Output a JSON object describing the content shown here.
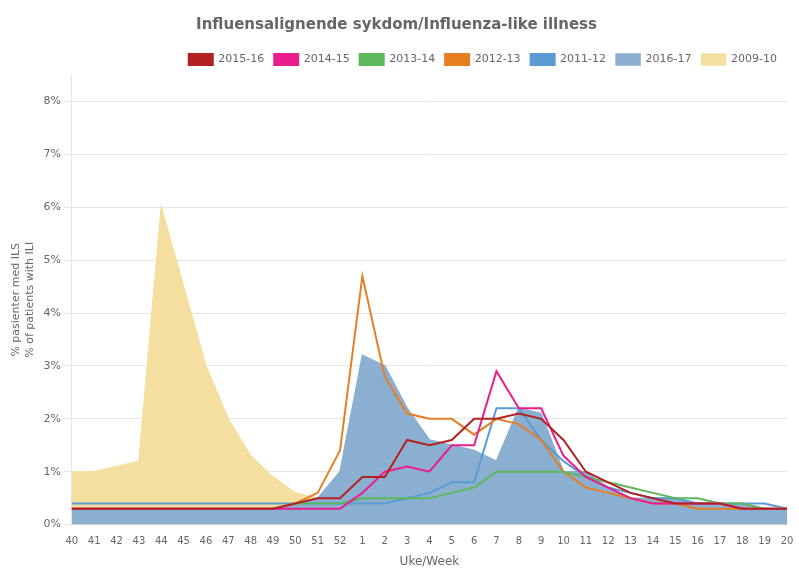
{
  "chart_data": {
    "type": "line",
    "title": "Influensalignende sykdom/Influenza-like illness",
    "x_label": "Uke/Week",
    "y_label": "% pasienter med ILS\n% of patients with ILI",
    "categories": [
      "40",
      "41",
      "42",
      "43",
      "44",
      "45",
      "46",
      "47",
      "48",
      "49",
      "50",
      "51",
      "52",
      "1",
      "2",
      "3",
      "4",
      "5",
      "6",
      "7",
      "8",
      "9",
      "10",
      "11",
      "12",
      "13",
      "14",
      "15",
      "16",
      "17",
      "18",
      "19",
      "20"
    ],
    "ylim": [
      0,
      0.085
    ],
    "yticks": [
      {
        "value": 0,
        "label": "0%"
      },
      {
        "value": 0.01,
        "label": "1%"
      },
      {
        "value": 0.02,
        "label": "2%"
      },
      {
        "value": 0.03,
        "label": "3%"
      },
      {
        "value": 0.04,
        "label": "4%"
      },
      {
        "value": 0.05,
        "label": "5%"
      },
      {
        "value": 0.06,
        "label": "6%"
      },
      {
        "value": 0.07,
        "label": "7%"
      },
      {
        "value": 0.08,
        "label": "8%"
      }
    ],
    "grid": true,
    "legend": "upper right",
    "series": [
      {
        "name": "2009-10",
        "type": "area",
        "color": "#f5dfa0",
        "values": [
          0.01,
          0.01,
          0.011,
          0.012,
          0.06,
          0.045,
          0.03,
          0.02,
          0.013,
          0.009,
          0.006,
          0.005,
          0.004,
          0.003,
          0.003,
          0.003,
          0.003,
          0.003,
          0.003,
          0.003,
          0.003,
          0.003,
          0.003,
          0.003,
          0.003,
          0.003,
          0.003,
          0.003,
          0.003,
          0.003,
          0.003,
          0.003,
          0.003
        ]
      },
      {
        "name": "2016-17",
        "type": "area",
        "color": "#8bafd0",
        "values": [
          0.003,
          0.003,
          0.003,
          0.003,
          0.003,
          0.003,
          0.003,
          0.003,
          0.003,
          0.003,
          0.004,
          0.005,
          0.01,
          0.032,
          0.03,
          0.022,
          0.016,
          0.015,
          0.014,
          0.012,
          0.022,
          0.021,
          0.01,
          0.01,
          0.007,
          0.005,
          0.005,
          0.005,
          0.004,
          0.004,
          0.004,
          0.003,
          0.003
        ]
      },
      {
        "name": "2015-16",
        "type": "line",
        "color": "#b22222",
        "values": [
          0.003,
          0.003,
          0.003,
          0.003,
          0.003,
          0.003,
          0.003,
          0.003,
          0.003,
          0.003,
          0.004,
          0.005,
          0.005,
          0.009,
          0.009,
          0.016,
          0.015,
          0.016,
          0.02,
          0.02,
          0.021,
          0.02,
          0.016,
          0.01,
          0.008,
          0.006,
          0.005,
          0.004,
          0.004,
          0.004,
          0.003,
          0.003,
          0.003
        ]
      },
      {
        "name": "2014-15",
        "type": "line",
        "color": "#e91e8c",
        "values": [
          0.003,
          0.003,
          0.003,
          0.003,
          0.003,
          0.003,
          0.003,
          0.003,
          0.003,
          0.003,
          0.003,
          0.003,
          0.003,
          0.006,
          0.01,
          0.011,
          0.01,
          0.015,
          0.015,
          0.029,
          0.022,
          0.022,
          0.013,
          0.009,
          0.007,
          0.005,
          0.004,
          0.004,
          0.004,
          0.004,
          0.003,
          0.003,
          0.003
        ]
      },
      {
        "name": "2013-14",
        "type": "line",
        "color": "#5cb85c",
        "values": [
          0.003,
          0.003,
          0.003,
          0.003,
          0.003,
          0.003,
          0.003,
          0.003,
          0.003,
          0.003,
          0.004,
          0.004,
          0.004,
          0.005,
          0.005,
          0.005,
          0.005,
          0.006,
          0.007,
          0.01,
          0.01,
          0.01,
          0.01,
          0.009,
          0.008,
          0.007,
          0.006,
          0.005,
          0.005,
          0.004,
          0.004,
          0.003,
          0.003
        ]
      },
      {
        "name": "2012-13",
        "type": "line",
        "color": "#e67e22",
        "values": [
          0.003,
          0.003,
          0.003,
          0.003,
          0.003,
          0.003,
          0.003,
          0.003,
          0.003,
          0.003,
          0.004,
          0.006,
          0.014,
          0.047,
          0.028,
          0.021,
          0.02,
          0.02,
          0.017,
          0.02,
          0.019,
          0.016,
          0.01,
          0.007,
          0.006,
          0.005,
          0.004,
          0.004,
          0.003,
          0.003,
          0.003,
          0.003,
          0.003
        ]
      },
      {
        "name": "2011-12",
        "type": "line",
        "color": "#5b9bd5",
        "values": [
          0.004,
          0.004,
          0.004,
          0.004,
          0.004,
          0.004,
          0.004,
          0.004,
          0.004,
          0.004,
          0.004,
          0.004,
          0.004,
          0.004,
          0.004,
          0.005,
          0.006,
          0.008,
          0.008,
          0.022,
          0.022,
          0.016,
          0.012,
          0.009,
          0.007,
          0.006,
          0.005,
          0.005,
          0.004,
          0.004,
          0.004,
          0.004,
          0.003
        ]
      }
    ]
  }
}
